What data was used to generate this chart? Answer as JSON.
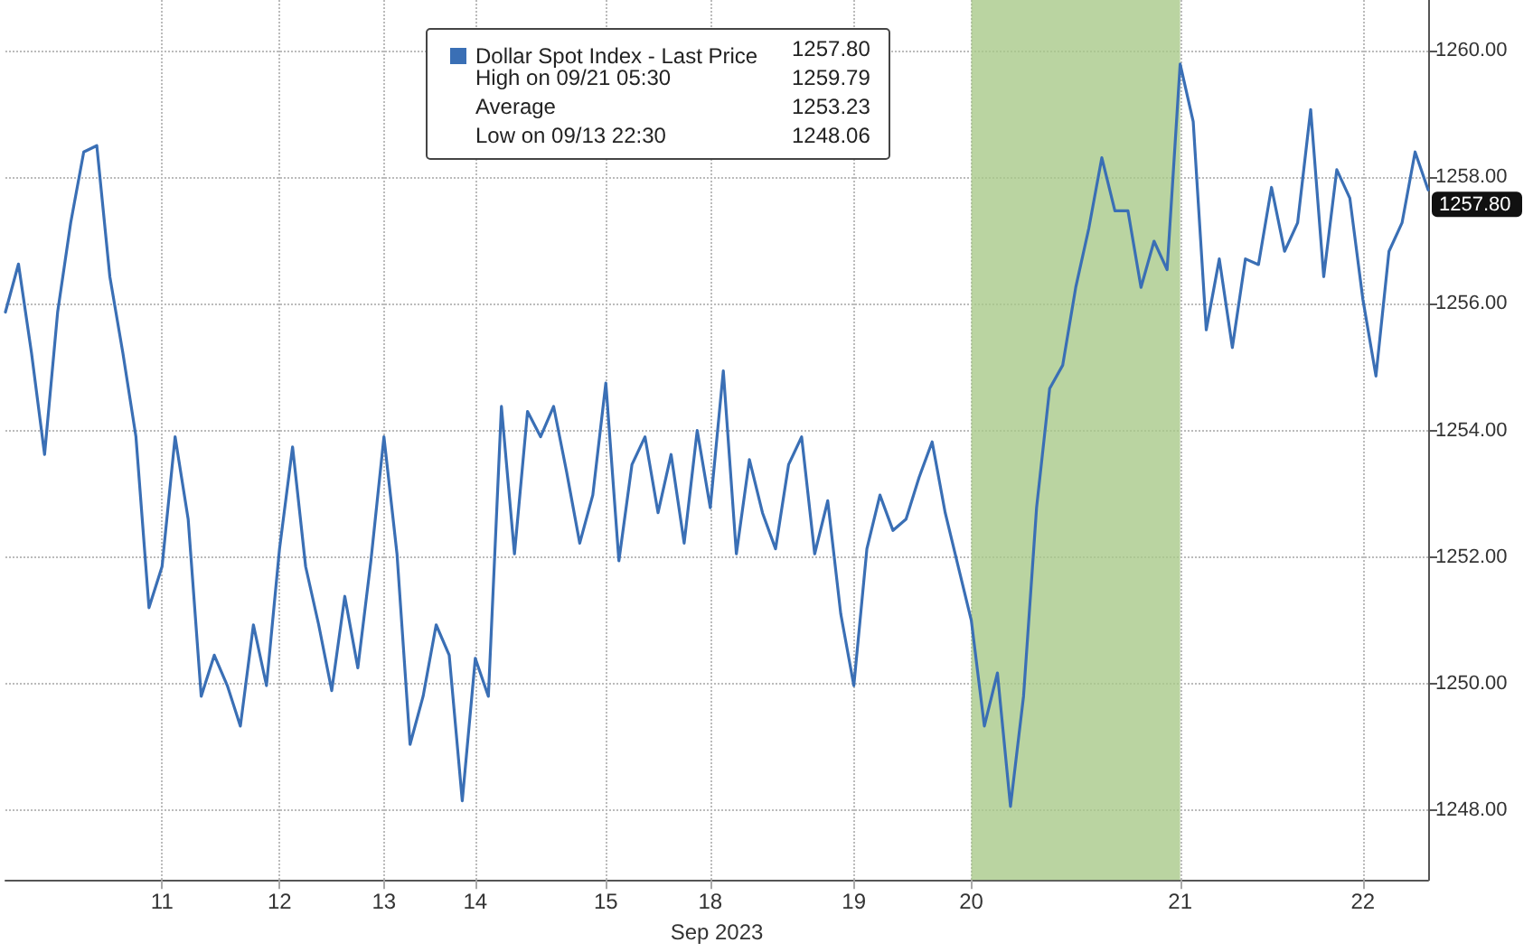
{
  "chart_data": {
    "type": "line",
    "xlabel": "Sep 2023",
    "categories": [
      null,
      null,
      null,
      null,
      null,
      null,
      null,
      null,
      null,
      null,
      null,
      null,
      "11",
      null,
      null,
      null,
      null,
      null,
      null,
      null,
      null,
      "12",
      null,
      null,
      null,
      null,
      null,
      null,
      null,
      "13",
      null,
      null,
      null,
      null,
      null,
      null,
      "14",
      null,
      null,
      null,
      null,
      null,
      null,
      null,
      null,
      null,
      "15",
      null,
      null,
      null,
      null,
      null,
      null,
      null,
      "18",
      null,
      null,
      null,
      null,
      null,
      null,
      null,
      null,
      null,
      null,
      "19",
      null,
      null,
      null,
      null,
      null,
      null,
      null,
      null,
      "20",
      null,
      null,
      null,
      null,
      null,
      null,
      null,
      null,
      null,
      null,
      null,
      null,
      null,
      null,
      null,
      "21",
      null,
      null,
      null,
      null,
      null,
      null,
      null,
      null,
      null,
      null,
      null,
      null,
      null,
      "22",
      null,
      null,
      null,
      null,
      null
    ],
    "series": [
      {
        "name": "Dollar Spot Index - Last Price",
        "color": "#3a6fb5",
        "values": [
          1255.87,
          1256.63,
          1255.22,
          1253.62,
          1255.87,
          1257.28,
          1258.4,
          1258.5,
          1256.43,
          1255.22,
          1253.9,
          1251.2,
          1251.85,
          1253.9,
          1252.6,
          1249.8,
          1250.45,
          1249.97,
          1249.33,
          1250.93,
          1249.97,
          1252.13,
          1253.74,
          1251.85,
          1250.93,
          1249.89,
          1251.38,
          1250.25,
          1251.94,
          1253.9,
          1252.05,
          1249.04,
          1249.8,
          1250.93,
          1250.45,
          1248.15,
          1250.4,
          1249.8,
          1254.38,
          1252.05,
          1254.3,
          1253.9,
          1254.38,
          1253.34,
          1252.22,
          1252.98,
          1254.75,
          1251.94,
          1253.46,
          1253.9,
          1252.7,
          1253.62,
          1252.22,
          1254.0,
          1252.78,
          1254.94,
          1252.05,
          1253.54,
          1252.7,
          1252.13,
          1253.46,
          1253.9,
          1252.05,
          1252.89,
          1251.1,
          1249.97,
          1252.13,
          1252.98,
          1252.42,
          1252.6,
          1253.26,
          1253.82,
          1252.7,
          1251.85,
          1251.0,
          1249.33,
          1250.17,
          1248.06,
          1249.8,
          1252.78,
          1254.66,
          1255.03,
          1256.26,
          1257.19,
          1258.31,
          1257.47,
          1257.47,
          1256.26,
          1256.99,
          1256.54,
          1259.79,
          1258.88,
          1255.59,
          1256.71,
          1255.31,
          1256.71,
          1256.62,
          1257.84,
          1256.83,
          1257.28,
          1259.07,
          1256.43,
          1258.12,
          1257.67,
          1256.07,
          1254.86,
          1256.83,
          1257.28,
          1258.4,
          1257.8
        ]
      }
    ],
    "ylim": [
      1246.9,
      1260.8
    ],
    "yticks": [
      {
        "value": 1248,
        "label": "1248.00"
      },
      {
        "value": 1250,
        "label": "1250.00"
      },
      {
        "value": 1252,
        "label": "1252.00"
      },
      {
        "value": 1254,
        "label": "1254.00"
      },
      {
        "value": 1256,
        "label": "1256.00"
      },
      {
        "value": 1258,
        "label": "1258.00"
      },
      {
        "value": 1260,
        "label": "1260.00"
      }
    ],
    "bands": [
      {
        "axis": "x",
        "from": "20",
        "to": "21",
        "color": "#a9c98a"
      }
    ],
    "annotations": [
      "1257.80",
      "High on 09/21 05:30",
      "1259.79",
      "Average",
      "1253.23",
      "Low on 09/13 22:30",
      "1248.06",
      "1257.80"
    ],
    "grid": true,
    "legend": "top",
    "marker": "none",
    "line_style": "solid"
  }
}
